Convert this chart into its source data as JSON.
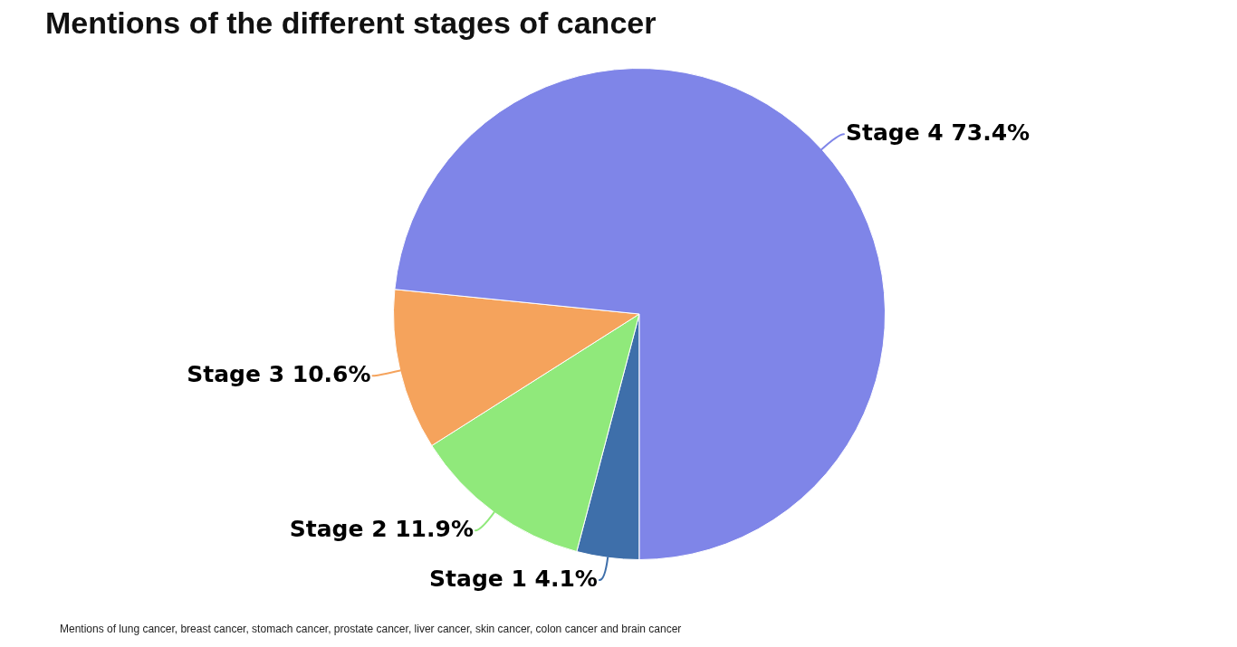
{
  "chart_data": {
    "type": "pie",
    "title": "Mentions of the different stages of cancer",
    "categories": [
      "Stage 1",
      "Stage 2",
      "Stage 3",
      "Stage 4"
    ],
    "values": [
      4.1,
      11.9,
      10.6,
      73.4
    ],
    "value_labels": [
      "4.1%",
      "11.9%",
      "10.6%",
      "73.4%"
    ],
    "colors": [
      "#3e6faa",
      "#90e97b",
      "#f5a35c",
      "#7f85e8"
    ],
    "legend": false,
    "annotations": [
      "Mentions of lung cancer, breast cancer, stomach cancer, prostate cancer, liver cancer, skin cancer, colon cancer and brain cancer"
    ]
  }
}
